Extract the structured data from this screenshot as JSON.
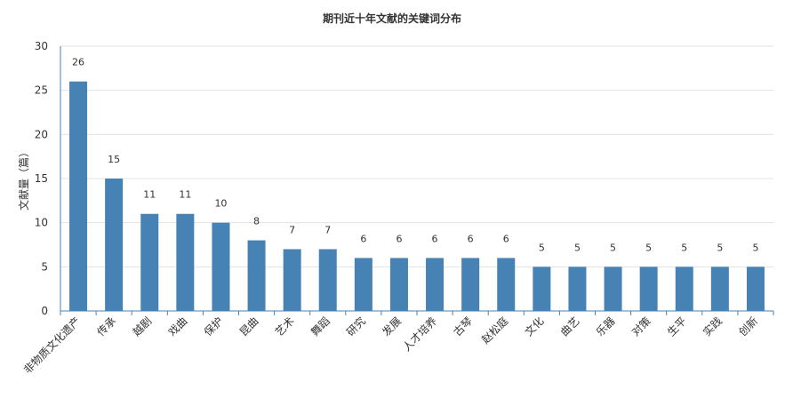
{
  "chart_data": {
    "type": "bar",
    "title": "期刊近十年文献的关键词分布",
    "xlabel": "",
    "ylabel": "文献量（篇）",
    "ylim": [
      0,
      30
    ],
    "yticks": [
      0,
      5,
      10,
      15,
      20,
      25,
      30
    ],
    "grid": true,
    "color": "#4682b4",
    "categories": [
      "非物质文化遗产",
      "传承",
      "越剧",
      "戏曲",
      "保护",
      "昆曲",
      "艺术",
      "舞蹈",
      "研究",
      "发展",
      "人才培养",
      "古琴",
      "赵松庭",
      "文化",
      "曲艺",
      "乐器",
      "对策",
      "生平",
      "实践",
      "创新"
    ],
    "values": [
      26,
      15,
      11,
      11,
      10,
      8,
      7,
      7,
      6,
      6,
      6,
      6,
      6,
      5,
      5,
      5,
      5,
      5,
      5,
      5
    ]
  }
}
